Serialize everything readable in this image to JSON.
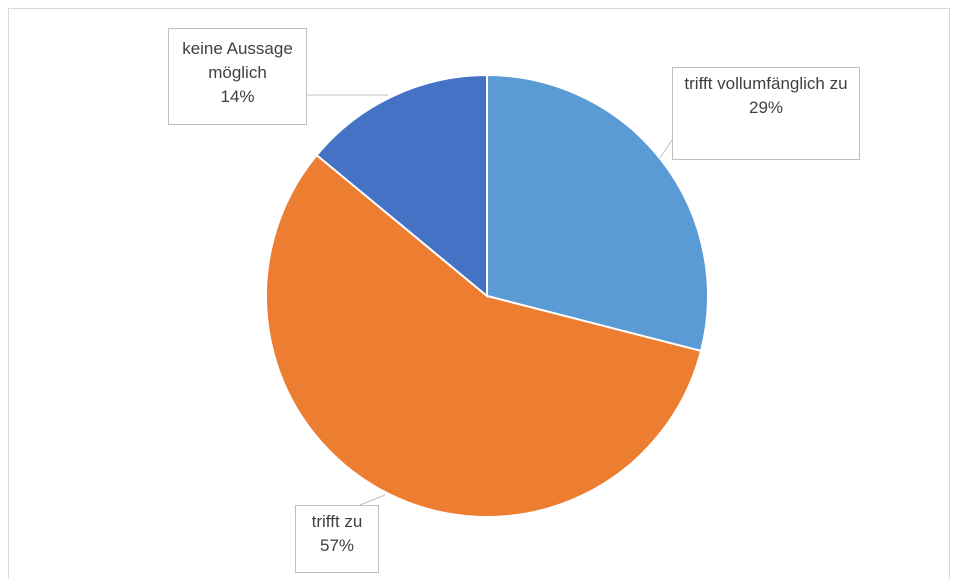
{
  "chart_data": {
    "type": "pie",
    "categories": [
      "trifft vollumfänglich zu",
      "trifft zu",
      "keine Aussage möglich"
    ],
    "values": [
      29,
      57,
      14
    ],
    "value_labels": [
      "29%",
      "57%",
      "14%"
    ],
    "colors": [
      "#5b9bd5",
      "#ed7d31",
      "#4472c4"
    ]
  }
}
